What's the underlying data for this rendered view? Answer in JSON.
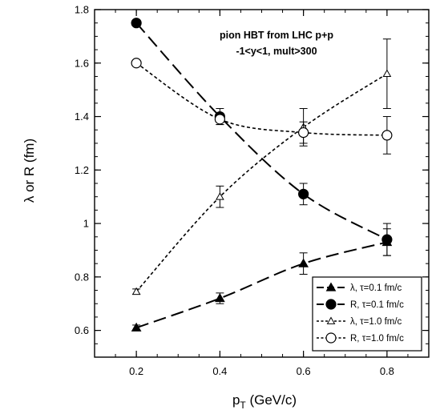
{
  "chart_data": {
    "type": "line",
    "title": "",
    "annotation": [
      "pion HBT from LHC p+p",
      "-1<y<1, mult>300"
    ],
    "xlabel": "p",
    "xlabel_sub": "T",
    "xlabel_unit": " (GeV/c)",
    "ylabel": "λ or R (fm)",
    "xlim": [
      0.1,
      0.9
    ],
    "ylim": [
      0.5,
      1.8
    ],
    "x_ticks": [
      0.2,
      0.4,
      0.6,
      0.8
    ],
    "x_tick_labels": [
      "0.2",
      "0.4",
      "0.6",
      "0.8"
    ],
    "y_ticks": [
      0.6,
      0.8,
      1.0,
      1.2,
      1.4,
      1.6,
      1.8
    ],
    "y_tick_labels": [
      "0.6",
      "0.8",
      "1",
      "1.2",
      "1.4",
      "1.6",
      "1.8"
    ],
    "grid": false,
    "legend_position": "bottom-right",
    "series": [
      {
        "name": "λ, τ=0.1 fm/c",
        "marker": "filled-triangle",
        "line": "long-dash",
        "x": [
          0.2,
          0.4,
          0.6,
          0.8
        ],
        "y": [
          0.61,
          0.72,
          0.85,
          0.93
        ],
        "err": [
          0.01,
          0.02,
          0.04,
          0.05
        ]
      },
      {
        "name": "R, τ=0.1 fm/c",
        "marker": "filled-circle",
        "line": "long-dash",
        "x": [
          0.2,
          0.4,
          0.6,
          0.8
        ],
        "y": [
          1.75,
          1.4,
          1.11,
          0.94
        ],
        "err": [
          0.01,
          0.03,
          0.04,
          0.06
        ]
      },
      {
        "name": "λ, τ=1.0 fm/c",
        "marker": "open-triangle",
        "line": "short-dash",
        "x": [
          0.2,
          0.4,
          0.6,
          0.8
        ],
        "y": [
          0.745,
          1.1,
          1.36,
          1.56
        ],
        "err": [
          0.01,
          0.04,
          0.07,
          0.13
        ]
      },
      {
        "name": "R, τ=1.0 fm/c",
        "marker": "open-circle",
        "line": "short-dash",
        "x": [
          0.2,
          0.4,
          0.6,
          0.8
        ],
        "y": [
          1.6,
          1.39,
          1.34,
          1.33
        ],
        "err": [
          0.01,
          0.02,
          0.04,
          0.07
        ]
      }
    ]
  }
}
